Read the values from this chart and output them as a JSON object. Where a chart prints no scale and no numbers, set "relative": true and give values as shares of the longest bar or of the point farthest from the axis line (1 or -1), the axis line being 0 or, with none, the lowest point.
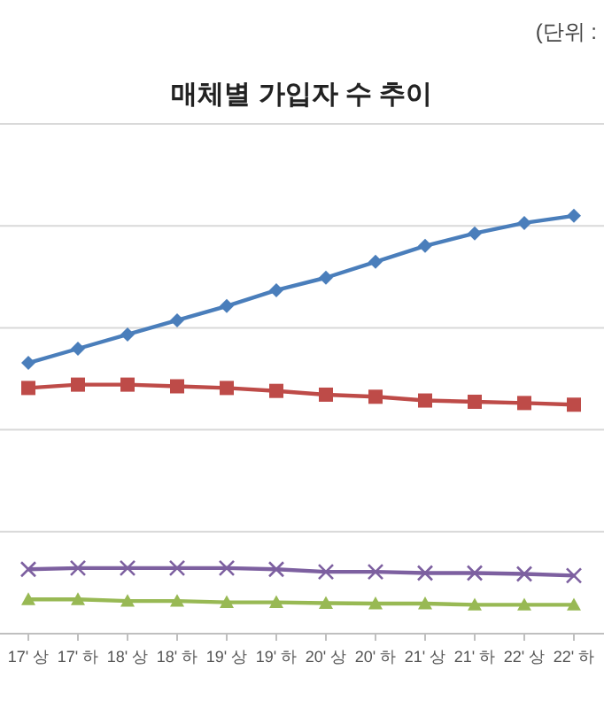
{
  "chart_data": {
    "type": "line",
    "title": "매체별 가입자 수 추이",
    "annotations": [
      "(단위 :"
    ],
    "relative": true,
    "grid": "y",
    "line_style": "solid",
    "categories": [
      "17' 상",
      "17' 하",
      "18' 상",
      "18' 하",
      "19' 상",
      "19' 하",
      "20' 상",
      "20' 하",
      "21' 상",
      "21' 하",
      "22' 상",
      "22' 하"
    ],
    "series": [
      {
        "color": "#4a7ebb",
        "marker": "diamond",
        "values": [
          0.648,
          0.682,
          0.716,
          0.75,
          0.784,
          0.822,
          0.852,
          0.89,
          0.928,
          0.958,
          0.983,
          1
        ]
      },
      {
        "color": "#be4b48",
        "marker": "square",
        "values": [
          0.588,
          0.596,
          0.596,
          0.592,
          0.588,
          0.581,
          0.572,
          0.567,
          0.558,
          0.555,
          0.552,
          0.548
        ]
      },
      {
        "color": "#7d60a0",
        "marker": "cross",
        "values": [
          0.154,
          0.157,
          0.157,
          0.157,
          0.157,
          0.154,
          0.148,
          0.148,
          0.145,
          0.145,
          0.143,
          0.139
        ]
      },
      {
        "color": "#98b954",
        "marker": "triangle",
        "values": [
          0.082,
          0.082,
          0.078,
          0.078,
          0.075,
          0.075,
          0.073,
          0.072,
          0.072,
          0.069,
          0.069,
          0.069
        ]
      }
    ]
  }
}
